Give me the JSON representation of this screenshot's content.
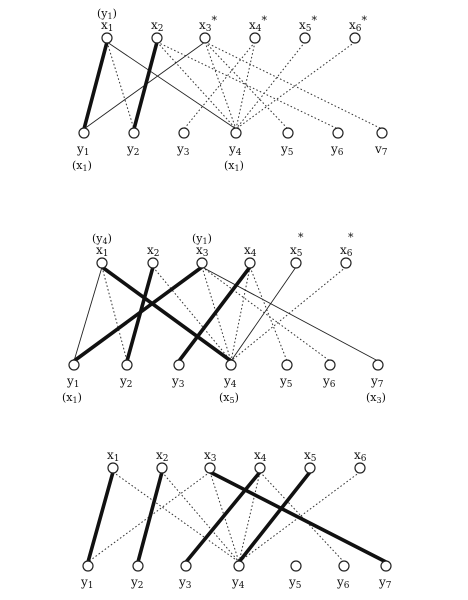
{
  "diagrams": [
    {
      "id": "graph-1",
      "x_nodes": [
        {
          "label": "x1",
          "above": "(y1)"
        },
        {
          "label": "x2"
        },
        {
          "label": "x3*"
        },
        {
          "label": "x4*"
        },
        {
          "label": "x5*"
        },
        {
          "label": "x6*"
        }
      ],
      "y_nodes": [
        {
          "label": "y1",
          "below": "(x1)"
        },
        {
          "label": "y2"
        },
        {
          "label": "y3"
        },
        {
          "label": "y4",
          "below": "(x1)"
        },
        {
          "label": "y5"
        },
        {
          "label": "y6"
        },
        {
          "label": "v7"
        }
      ],
      "edges": [
        {
          "from": "x1",
          "to": "y1",
          "style": "bold"
        },
        {
          "from": "x1",
          "to": "y2",
          "style": "dotted"
        },
        {
          "from": "x1",
          "to": "y4",
          "style": "thin"
        },
        {
          "from": "x2",
          "to": "y2",
          "style": "bold"
        },
        {
          "from": "x2",
          "to": "y4",
          "style": "dotted"
        },
        {
          "from": "x2",
          "to": "y6",
          "style": "dotted"
        },
        {
          "from": "x3*",
          "to": "y1",
          "style": "thin"
        },
        {
          "from": "x3*",
          "to": "y4",
          "style": "dotted"
        },
        {
          "from": "x3*",
          "to": "y5",
          "style": "dotted"
        },
        {
          "from": "x3*",
          "to": "v7",
          "style": "dotted"
        },
        {
          "from": "x4*",
          "to": "y3",
          "style": "dotted"
        },
        {
          "from": "x4*",
          "to": "y4",
          "style": "dotted"
        },
        {
          "from": "x5*",
          "to": "y4",
          "style": "dotted"
        },
        {
          "from": "x6*",
          "to": "y4",
          "style": "dotted"
        }
      ]
    },
    {
      "id": "graph-2",
      "x_nodes": [
        {
          "label": "x1",
          "above": "(y4)"
        },
        {
          "label": "x2"
        },
        {
          "label": "x3",
          "above": "(y1)"
        },
        {
          "label": "x4"
        },
        {
          "label": "x5",
          "above": "*"
        },
        {
          "label": "x6",
          "above": "*"
        }
      ],
      "y_nodes": [
        {
          "label": "y1",
          "below": "(x1)"
        },
        {
          "label": "y2"
        },
        {
          "label": "y3"
        },
        {
          "label": "y4",
          "below": "(x5)"
        },
        {
          "label": "y5"
        },
        {
          "label": "y6"
        },
        {
          "label": "y7",
          "below": "(x3)"
        }
      ],
      "edges": [
        {
          "from": "x1",
          "to": "y1",
          "style": "thin"
        },
        {
          "from": "x1",
          "to": "y2",
          "style": "dotted"
        },
        {
          "from": "x1",
          "to": "y4",
          "style": "bold"
        },
        {
          "from": "x2",
          "to": "y2",
          "style": "bold"
        },
        {
          "from": "x2",
          "to": "y4",
          "style": "dotted"
        },
        {
          "from": "x3",
          "to": "y1",
          "style": "bold"
        },
        {
          "from": "x3",
          "to": "y4",
          "style": "dotted"
        },
        {
          "from": "x3",
          "to": "y6",
          "style": "dotted"
        },
        {
          "from": "x3",
          "to": "y7",
          "style": "thin"
        },
        {
          "from": "x4",
          "to": "y3",
          "style": "bold"
        },
        {
          "from": "x4",
          "to": "y4",
          "style": "dotted"
        },
        {
          "from": "x4",
          "to": "y5",
          "style": "dotted"
        },
        {
          "from": "x5",
          "to": "y4",
          "style": "thin"
        },
        {
          "from": "x6",
          "to": "y4",
          "style": "dotted"
        }
      ]
    },
    {
      "id": "graph-3",
      "x_nodes": [
        {
          "label": "x1"
        },
        {
          "label": "x2"
        },
        {
          "label": "x3"
        },
        {
          "label": "x4"
        },
        {
          "label": "x5"
        },
        {
          "label": "x6"
        }
      ],
      "y_nodes": [
        {
          "label": "y1"
        },
        {
          "label": "y2"
        },
        {
          "label": "y3"
        },
        {
          "label": "y4"
        },
        {
          "label": "y5"
        },
        {
          "label": "y6"
        },
        {
          "label": "y7"
        }
      ],
      "edges": [
        {
          "from": "x1",
          "to": "y1",
          "style": "bold"
        },
        {
          "from": "x1",
          "to": "y4",
          "style": "dotted"
        },
        {
          "from": "x2",
          "to": "y2",
          "style": "bold"
        },
        {
          "from": "x2",
          "to": "y4",
          "style": "dotted"
        },
        {
          "from": "x3",
          "to": "y1",
          "style": "dotted"
        },
        {
          "from": "x3",
          "to": "y4",
          "style": "dotted"
        },
        {
          "from": "x3",
          "to": "y7",
          "style": "bold"
        },
        {
          "from": "x4",
          "to": "y3",
          "style": "bold"
        },
        {
          "from": "x4",
          "to": "y4",
          "style": "dotted"
        },
        {
          "from": "x4",
          "to": "y6",
          "style": "dotted"
        },
        {
          "from": "x5",
          "to": "y4",
          "style": "bold"
        },
        {
          "from": "x6",
          "to": "y4",
          "style": "dotted"
        }
      ]
    }
  ]
}
